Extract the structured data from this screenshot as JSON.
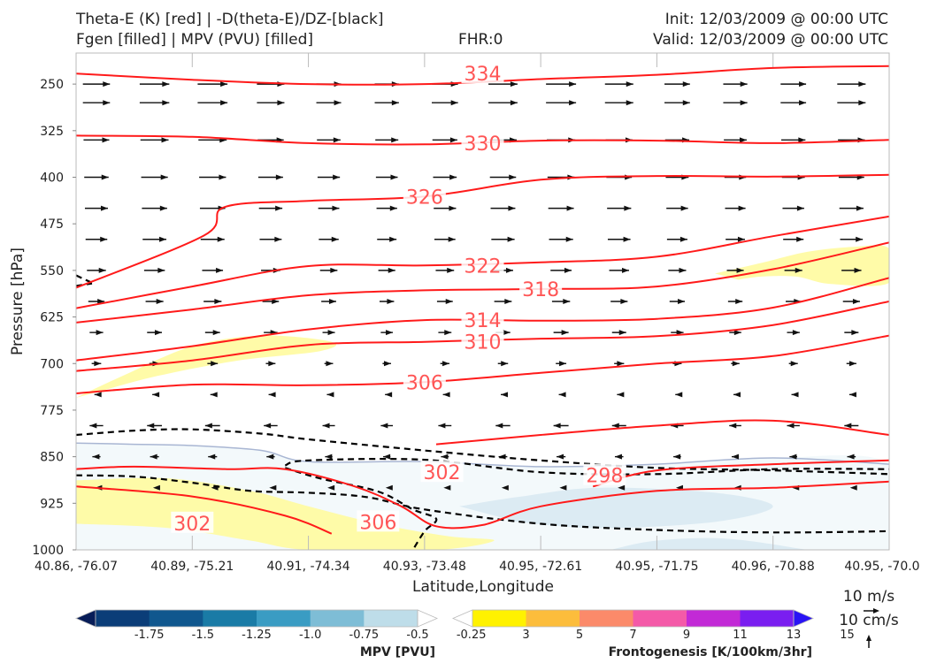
{
  "header": {
    "line1_left": "Theta-E (K) [red] | -D(theta-E)/DZ-[black]",
    "line2_left": "Fgen [filled] | MPV (PVU) [filled]",
    "center": "FHR:0",
    "line1_right": "Init: 12/03/2009 @ 00:00 UTC",
    "line2_right": "Valid: 12/03/2009 @ 00:00 UTC"
  },
  "chart_data": {
    "type": "cross-section",
    "xlabel": "Latitude,Longitude",
    "ylabel": "Pressure [hPa]",
    "x_ticks": [
      "40.86, -76.07",
      "40.89, -75.21",
      "40.91, -74.34",
      "40.93, -73.48",
      "40.95, -72.61",
      "40.95, -71.75",
      "40.96, -70.88",
      "40.95, -70.0"
    ],
    "y_ticks": [
      250,
      325,
      400,
      475,
      550,
      625,
      700,
      775,
      850,
      925,
      1000
    ],
    "ylim": [
      1000,
      200
    ],
    "theta_e_contours": [
      {
        "value": 334,
        "label": "334",
        "points": [
          [
            0,
            233
          ],
          [
            1,
            243
          ],
          [
            2,
            250
          ],
          [
            3,
            250
          ],
          [
            4,
            242
          ],
          [
            5,
            235
          ],
          [
            6,
            224
          ],
          [
            7,
            221
          ]
        ]
      },
      {
        "value": 330,
        "label": "330",
        "points": [
          [
            0,
            333
          ],
          [
            1,
            335
          ],
          [
            2,
            345
          ],
          [
            3,
            347
          ],
          [
            4,
            341
          ],
          [
            5,
            341
          ],
          [
            6,
            345
          ],
          [
            7,
            340
          ]
        ]
      },
      {
        "value": 326,
        "label": "326",
        "points": [
          [
            0,
            578
          ],
          [
            1.1,
            494
          ],
          [
            1.28,
            448
          ],
          [
            2,
            438
          ],
          [
            3,
            431
          ],
          [
            4,
            404
          ],
          [
            5,
            398
          ],
          [
            6,
            399
          ],
          [
            7,
            396
          ]
        ]
      },
      {
        "value": 322,
        "label": "322",
        "points": [
          [
            0,
            611
          ],
          [
            1,
            576
          ],
          [
            2,
            543
          ],
          [
            3,
            542
          ],
          [
            4,
            537
          ],
          [
            5,
            528
          ],
          [
            6,
            495
          ],
          [
            7,
            463
          ]
        ]
      },
      {
        "value": 318,
        "label": "318",
        "points": [
          [
            0,
            634
          ],
          [
            1,
            613
          ],
          [
            2,
            590
          ],
          [
            3,
            582
          ],
          [
            4,
            580
          ],
          [
            5,
            576
          ],
          [
            6,
            548
          ],
          [
            7,
            505
          ]
        ]
      },
      {
        "value": 314,
        "label": "314",
        "points": [
          [
            0,
            695
          ],
          [
            1,
            672
          ],
          [
            2,
            645
          ],
          [
            3,
            630
          ],
          [
            4,
            631
          ],
          [
            5,
            628
          ],
          [
            6,
            610
          ],
          [
            7,
            562
          ]
        ]
      },
      {
        "value": 310,
        "label": "310",
        "points": [
          [
            0,
            712
          ],
          [
            1,
            695
          ],
          [
            2,
            670
          ],
          [
            3,
            665
          ],
          [
            4,
            660
          ],
          [
            5,
            656
          ],
          [
            6,
            638
          ],
          [
            7,
            600
          ]
        ]
      },
      {
        "value": 306,
        "label": "306",
        "points": [
          [
            0,
            748
          ],
          [
            1,
            734
          ],
          [
            2,
            735
          ],
          [
            3,
            730
          ],
          [
            4,
            715
          ],
          [
            5,
            700
          ],
          [
            6,
            688
          ],
          [
            7,
            655
          ]
        ]
      },
      {
        "value": 302,
        "label": "302",
        "points": [
          [
            3.1,
            830
          ],
          [
            4,
            815
          ],
          [
            5,
            800
          ],
          [
            6,
            792
          ],
          [
            7,
            815
          ]
        ]
      },
      {
        "value": 298,
        "label": "298",
        "points": [
          [
            4.45,
            898
          ],
          [
            5,
            872
          ],
          [
            6,
            862
          ],
          [
            7,
            856
          ]
        ]
      },
      {
        "value": 306,
        "label": "306",
        "points": [
          [
            0,
            870
          ],
          [
            0.5,
            866
          ],
          [
            1.3,
            870
          ],
          [
            1.8,
            870
          ],
          [
            2.4,
            898
          ],
          [
            2.8,
            930
          ],
          [
            3.1,
            962
          ],
          [
            3.5,
            960
          ],
          [
            4,
            930
          ],
          [
            5,
            905
          ],
          [
            6,
            900
          ],
          [
            7,
            890
          ]
        ]
      },
      {
        "value": 302,
        "label": "302",
        "points": [
          [
            0,
            898
          ],
          [
            1,
            914
          ],
          [
            1.8,
            945
          ],
          [
            2.2,
            974
          ]
        ]
      }
    ],
    "theta_e_labels": [
      {
        "text": "334",
        "x": 3.5,
        "y": 233
      },
      {
        "text": "330",
        "x": 3.5,
        "y": 345
      },
      {
        "text": "326",
        "x": 3.0,
        "y": 431
      },
      {
        "text": "322",
        "x": 3.5,
        "y": 542
      },
      {
        "text": "318",
        "x": 4.0,
        "y": 580
      },
      {
        "text": "314",
        "x": 3.5,
        "y": 630
      },
      {
        "text": "310",
        "x": 3.5,
        "y": 665
      },
      {
        "text": "306",
        "x": 3.0,
        "y": 730
      },
      {
        "text": "302",
        "x": 3.15,
        "y": 875
      },
      {
        "text": "298",
        "x": 4.55,
        "y": 880
      },
      {
        "text": "306",
        "x": 2.6,
        "y": 955
      },
      {
        "text": "302",
        "x": 1.0,
        "y": 957
      }
    ],
    "dthetae_dz_contours": [
      {
        "points": [
          [
            0,
            815
          ],
          [
            0.5,
            808
          ],
          [
            1,
            806
          ],
          [
            1.6,
            813
          ],
          [
            2,
            822
          ],
          [
            3,
            840
          ],
          [
            4,
            856
          ],
          [
            5,
            868
          ],
          [
            6,
            872
          ],
          [
            7,
            878
          ]
        ]
      },
      {
        "points": [
          [
            1.8,
            864
          ],
          [
            2,
            856
          ],
          [
            3,
            855
          ],
          [
            4,
            875
          ],
          [
            5,
            878
          ],
          [
            6,
            870
          ],
          [
            7,
            870
          ]
        ]
      },
      {
        "points": [
          [
            0,
            880
          ],
          [
            0.5,
            882
          ],
          [
            1,
            892
          ],
          [
            1.5,
            905
          ],
          [
            2,
            908
          ],
          [
            2.5,
            915
          ],
          [
            3,
            935
          ],
          [
            4,
            958
          ],
          [
            5,
            968
          ],
          [
            6,
            972
          ],
          [
            7,
            970
          ]
        ]
      },
      {
        "points": [
          [
            1.8,
            868
          ],
          [
            2.1,
            885
          ],
          [
            2.6,
            906
          ],
          [
            2.9,
            935
          ],
          [
            3.1,
            950
          ],
          [
            3,
            970
          ],
          [
            2.9,
            1000
          ]
        ]
      }
    ],
    "mpv_shading": [
      {
        "level": -0.25,
        "color": "#f3f9fb",
        "points": [
          [
            0,
            828
          ],
          [
            0.5,
            830
          ],
          [
            1,
            832
          ],
          [
            1.6,
            840
          ],
          [
            2,
            858
          ],
          [
            3,
            858
          ],
          [
            4,
            866
          ],
          [
            5,
            862
          ],
          [
            6,
            852
          ],
          [
            7,
            862
          ],
          [
            7,
            1000
          ],
          [
            0,
            1000
          ]
        ]
      },
      {
        "level": -0.5,
        "color": "#dcebf3",
        "points": [
          [
            3.3,
            930
          ],
          [
            3.8,
            915
          ],
          [
            4.5,
            900
          ],
          [
            5.5,
            908
          ],
          [
            6,
            930
          ],
          [
            5.5,
            955
          ],
          [
            4.5,
            965
          ],
          [
            3.8,
            955
          ]
        ]
      },
      {
        "level": -0.5,
        "color": "#dcebf3",
        "points": [
          [
            4.6,
            1000
          ],
          [
            5,
            985
          ],
          [
            5.6,
            982
          ],
          [
            6.3,
            1000
          ]
        ]
      }
    ],
    "fgen_shading": [
      {
        "level": 3,
        "color": "#fffb9e",
        "points": [
          [
            0,
            755
          ],
          [
            0.4,
            720
          ],
          [
            1,
            672
          ],
          [
            1.6,
            655
          ],
          [
            2.2,
            665
          ],
          [
            2.1,
            680
          ],
          [
            1.4,
            695
          ],
          [
            0.7,
            720
          ],
          [
            0.2,
            745
          ]
        ]
      },
      {
        "level": 3,
        "color": "#fffb9e",
        "points": [
          [
            5.5,
            555
          ],
          [
            5.9,
            538
          ],
          [
            6.3,
            520
          ],
          [
            6.7,
            512
          ],
          [
            7,
            515
          ],
          [
            7,
            570
          ],
          [
            6.5,
            572
          ],
          [
            6.2,
            560
          ],
          [
            5.9,
            560
          ],
          [
            5.7,
            565
          ]
        ]
      },
      {
        "level": 3,
        "color": "#fffb9e",
        "points": [
          [
            0,
            888
          ],
          [
            0.8,
            885
          ],
          [
            1.5,
            905
          ],
          [
            2,
            930
          ],
          [
            2.6,
            958
          ],
          [
            3.2,
            978
          ],
          [
            3.6,
            985
          ],
          [
            3.1,
            1000
          ],
          [
            2,
            1000
          ],
          [
            1.5,
            985
          ],
          [
            0.8,
            965
          ],
          [
            0,
            958
          ]
        ]
      }
    ],
    "wind_arrows": [
      {
        "p": 250,
        "u": 1.0
      },
      {
        "p": 280,
        "u": 1.0
      },
      {
        "p": 340,
        "u": 0.95
      },
      {
        "p": 400,
        "u": 0.9
      },
      {
        "p": 450,
        "u": 0.85
      },
      {
        "p": 500,
        "u": 0.8
      },
      {
        "p": 550,
        "u": 0.7
      },
      {
        "p": 600,
        "u": 0.6
      },
      {
        "p": 650,
        "u": 0.5
      },
      {
        "p": 700,
        "u": 0.35
      },
      {
        "p": 750,
        "u": -0.15
      },
      {
        "p": 800,
        "u": -0.5
      },
      {
        "p": 850,
        "u": -0.3
      },
      {
        "p": 900,
        "u": -0.1
      }
    ],
    "wind_reference": {
      "line1": "10 m/s",
      "line2": "10 cm/s"
    },
    "mpv_colorbar": {
      "title": "MPV [PVU]",
      "ticks": [
        "-1.75",
        "-1.5",
        "-1.25",
        "-1.0",
        "-0.75",
        "-0.5",
        "-0.25"
      ],
      "colors": [
        "#081d58",
        "#0b3d78",
        "#10578e",
        "#1a7ba6",
        "#3a9cc3",
        "#7ebdd6",
        "#bedde9",
        "#ffffff"
      ]
    },
    "fgen_colorbar": {
      "title": "Frontogenesis [K/100km/3hr]",
      "ticks": [
        "3",
        "5",
        "7",
        "9",
        "11",
        "13",
        "15"
      ],
      "colors": [
        "#ffffff",
        "#fff200",
        "#fcbd3c",
        "#fb8a6a",
        "#f45aa8",
        "#c22ad6",
        "#7a1ef0",
        "#2a14f5"
      ]
    }
  }
}
